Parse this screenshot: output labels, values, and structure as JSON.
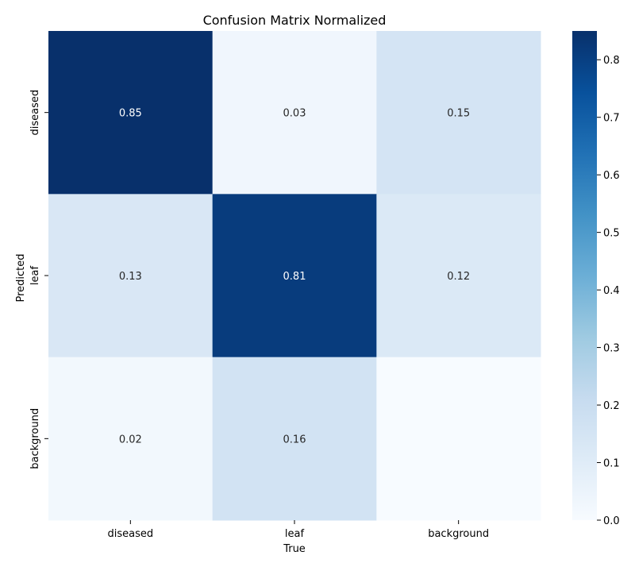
{
  "chart_data": {
    "type": "heatmap",
    "title": "Confusion Matrix Normalized",
    "xlabel": "True",
    "ylabel": "Predicted",
    "x_categories": [
      "diseased",
      "leaf",
      "background"
    ],
    "y_categories": [
      "diseased",
      "leaf",
      "background"
    ],
    "values": [
      [
        0.85,
        0.03,
        0.15
      ],
      [
        0.13,
        0.81,
        0.12
      ],
      [
        0.02,
        0.16,
        0.0
      ]
    ],
    "cell_labels": [
      [
        "0.85",
        "0.03",
        "0.15"
      ],
      [
        "0.13",
        "0.81",
        "0.12"
      ],
      [
        "0.02",
        "0.16",
        ""
      ]
    ],
    "colormap": "Blues",
    "color_range": [
      0.0,
      0.85
    ],
    "colorbar_ticks": [
      "0.0",
      "0.1",
      "0.2",
      "0.3",
      "0.4",
      "0.5",
      "0.6",
      "0.7",
      "0.8"
    ],
    "grid": false,
    "legend": "colorbar-right"
  }
}
